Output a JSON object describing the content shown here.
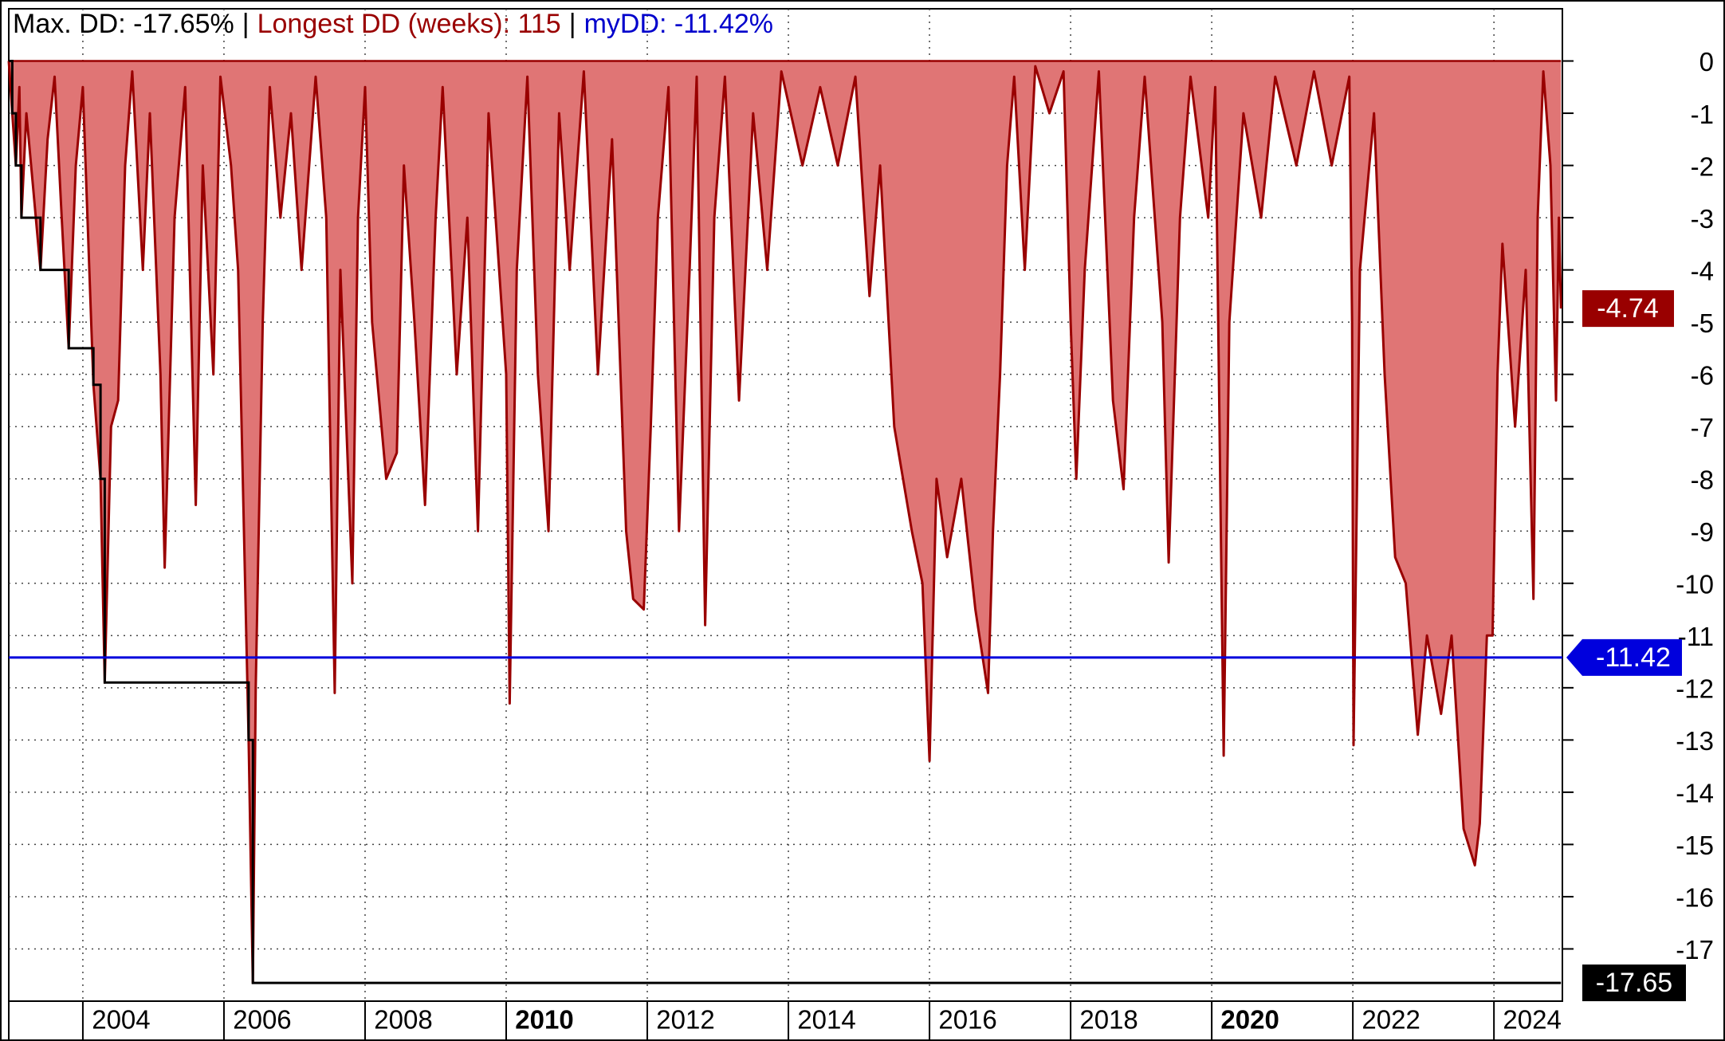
{
  "chart_data": {
    "type": "area",
    "title": [
      {
        "text": "Max. DD: -17.65%",
        "color": "#000000"
      },
      {
        "text": "|",
        "color": "#000000"
      },
      {
        "text": "Longest DD (weeks): 115",
        "color": "#990000"
      },
      {
        "text": "|",
        "color": "#000000"
      },
      {
        "text": "myDD: -11.42%",
        "color": "#0000cc"
      }
    ],
    "x": [
      2002.95,
      2003.0,
      2003.05,
      2003.1,
      2003.13,
      2003.2,
      2003.3,
      2003.4,
      2003.5,
      2003.6,
      2003.7,
      2003.8,
      2003.9,
      2004.0,
      2004.15,
      2004.25,
      2004.31,
      2004.4,
      2004.5,
      2004.6,
      2004.7,
      2004.85,
      2004.95,
      2005.1,
      2005.16,
      2005.3,
      2005.45,
      2005.6,
      2005.7,
      2005.85,
      2005.95,
      2006.1,
      2006.2,
      2006.3,
      2006.35,
      2006.41,
      2006.45,
      2006.55,
      2006.65,
      2006.8,
      2006.95,
      2007.1,
      2007.3,
      2007.45,
      2007.57,
      2007.65,
      2007.82,
      2007.9,
      2008.0,
      2008.1,
      2008.3,
      2008.45,
      2008.55,
      2008.7,
      2008.85,
      2009.0,
      2009.1,
      2009.3,
      2009.45,
      2009.6,
      2009.75,
      2010.0,
      2010.05,
      2010.15,
      2010.3,
      2010.45,
      2010.6,
      2010.75,
      2010.9,
      2011.1,
      2011.3,
      2011.5,
      2011.7,
      2011.8,
      2011.95,
      2012.05,
      2012.15,
      2012.3,
      2012.45,
      2012.6,
      2012.7,
      2012.82,
      2012.95,
      2013.1,
      2013.3,
      2013.5,
      2013.7,
      2013.9,
      2014.2,
      2014.45,
      2014.7,
      2014.95,
      2015.15,
      2015.3,
      2015.5,
      2015.75,
      2015.9,
      2016.0,
      2016.1,
      2016.25,
      2016.45,
      2016.65,
      2016.83,
      2016.9,
      2017.0,
      2017.1,
      2017.2,
      2017.35,
      2017.5,
      2017.7,
      2017.9,
      2018.0,
      2018.08,
      2018.2,
      2018.4,
      2018.6,
      2018.75,
      2018.9,
      2019.05,
      2019.3,
      2019.39,
      2019.55,
      2019.7,
      2019.95,
      2020.05,
      2020.17,
      2020.25,
      2020.45,
      2020.7,
      2020.9,
      2021.2,
      2021.45,
      2021.7,
      2021.95,
      2021.99,
      2022.01,
      2022.1,
      2022.3,
      2022.45,
      2022.6,
      2022.75,
      2022.92,
      2023.05,
      2023.25,
      2023.4,
      2023.57,
      2023.73,
      2023.8,
      2023.9,
      2023.98,
      2024.05,
      2024.12,
      2024.3,
      2024.45,
      2024.56,
      2024.62,
      2024.7,
      2024.8,
      2024.88,
      2024.92,
      2024.95
    ],
    "values": [
      0,
      -1,
      -2,
      -0.5,
      -3,
      -1,
      -2.5,
      -4,
      -1.5,
      -0.3,
      -3,
      -5.5,
      -2,
      -0.5,
      -6.2,
      -8,
      -11.9,
      -7,
      -6.5,
      -2,
      -0.2,
      -4,
      -1,
      -6,
      -9.7,
      -3,
      -0.5,
      -8.5,
      -2,
      -6,
      -0.3,
      -2,
      -4,
      -10,
      -13,
      -17.65,
      -12,
      -5,
      -0.5,
      -3,
      -1,
      -4,
      -0.3,
      -3,
      -12.1,
      -4,
      -10,
      -3,
      -0.5,
      -5,
      -8,
      -7.5,
      -2,
      -5,
      -8.5,
      -3,
      -0.5,
      -6,
      -3,
      -9,
      -1,
      -6,
      -12.3,
      -4,
      -0.3,
      -6,
      -9,
      -1,
      -4,
      -0.2,
      -6,
      -1.5,
      -9,
      -10.3,
      -10.5,
      -7,
      -3,
      -0.5,
      -9,
      -4,
      -0.3,
      -10.8,
      -3,
      -0.3,
      -6.5,
      -1,
      -4,
      -0.2,
      -2,
      -0.5,
      -2,
      -0.3,
      -4.5,
      -2,
      -7,
      -9,
      -10,
      -13.4,
      -8,
      -9.5,
      -8,
      -10.5,
      -12.1,
      -9,
      -6,
      -2,
      -0.3,
      -4,
      -0.1,
      -1,
      -0.2,
      -5,
      -8,
      -4,
      -0.2,
      -6.5,
      -8.2,
      -3,
      -0.3,
      -5,
      -9.6,
      -3,
      -0.3,
      -3,
      -0.5,
      -13.3,
      -5,
      -1,
      -3,
      -0.3,
      -2,
      -0.2,
      -2,
      -0.3,
      -5,
      -13.1,
      -4,
      -1,
      -6,
      -9.5,
      -10,
      -12.9,
      -11,
      -12.5,
      -11,
      -14.7,
      -15.4,
      -14.6,
      -11,
      -11,
      -6,
      -3.5,
      -7,
      -4,
      -10.3,
      -3,
      -0.2,
      -2,
      -6.5,
      -3,
      -4.74
    ],
    "area_color": "#e07575",
    "line_color": "#990000",
    "max_dd_color": "#000000",
    "my_dd": -11.42,
    "my_dd_color": "#0000dd",
    "xlim": [
      2002.95,
      2024.97
    ],
    "ylim": [
      -18,
      1
    ],
    "xticks": [
      2004,
      2006,
      2008,
      2010,
      2012,
      2014,
      2016,
      2018,
      2020,
      2022,
      2024
    ],
    "yticks": [
      0,
      -1,
      -2,
      -3,
      -4,
      -5,
      -6,
      -7,
      -8,
      -9,
      -10,
      -11,
      -12,
      -13,
      -14,
      -15,
      -16,
      -17
    ],
    "grid": true
  }
}
